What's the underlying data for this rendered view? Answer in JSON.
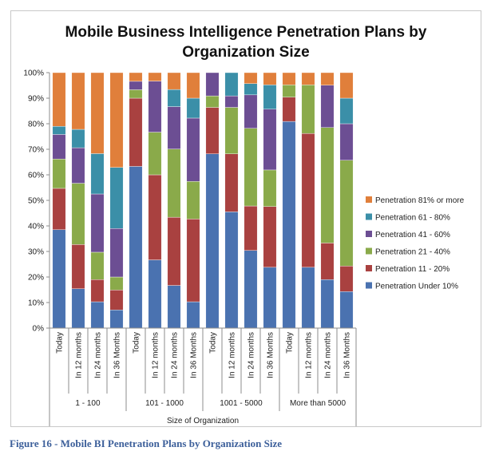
{
  "caption": "Figure 16 - Mobile BI Penetration Plans by Organization Size",
  "chart_data": {
    "type": "bar",
    "stacked": true,
    "percent_stacked": true,
    "title": "Mobile Business Intelligence Penetration Plans by Organization Size",
    "xlabel": "Size of Organization",
    "ylabel": "",
    "ylim": [
      0,
      100
    ],
    "yticks": [
      "0%",
      "10%",
      "20%",
      "30%",
      "40%",
      "50%",
      "60%",
      "70%",
      "80%",
      "90%",
      "100%"
    ],
    "groups": [
      {
        "name": "1 - 100",
        "categories": [
          "Today",
          "In 12 months",
          "In 24 months",
          "In 36 Months"
        ]
      },
      {
        "name": "101 - 1000",
        "categories": [
          "Today",
          "In 12 months",
          "In 24 months",
          "In 36 Months"
        ]
      },
      {
        "name": "1001 - 5000",
        "categories": [
          "Today",
          "In 12 months",
          "In 24 months",
          "In 36 Months"
        ]
      },
      {
        "name": "More than 5000",
        "categories": [
          "Today",
          "In 12 months",
          "In 24 months",
          "In 36 Months"
        ]
      }
    ],
    "series": [
      {
        "name": "Penetration Under 10%",
        "color": "#4a72b0",
        "values": [
          38.5,
          15.4,
          10.3,
          7.1,
          63.3,
          26.7,
          16.7,
          10.3,
          68.2,
          45.5,
          30.4,
          23.8,
          80.9,
          23.8,
          19.0,
          14.3
        ]
      },
      {
        "name": "Penetration 11 - 20%",
        "color": "#a94140",
        "values": [
          16.2,
          17.3,
          8.7,
          7.8,
          26.7,
          33.3,
          26.7,
          32.4,
          18.2,
          22.7,
          17.4,
          23.8,
          9.5,
          52.4,
          14.3,
          10.0
        ]
      },
      {
        "name": "Penetration 21 - 40%",
        "color": "#8aaa4a",
        "values": [
          11.5,
          24.0,
          10.7,
          5.1,
          3.3,
          16.7,
          26.7,
          14.7,
          4.5,
          18.2,
          30.4,
          14.3,
          4.8,
          19.0,
          45.2,
          41.4
        ]
      },
      {
        "name": "Penetration 41 - 60%",
        "color": "#6c4e93",
        "values": [
          9.6,
          13.9,
          22.8,
          19.0,
          3.3,
          20.0,
          16.6,
          24.8,
          9.1,
          4.5,
          13.1,
          23.8,
          0,
          0,
          16.6,
          14.3
        ]
      },
      {
        "name": "Penetration 61 - 80%",
        "color": "#3b8fa8",
        "values": [
          3.2,
          7.2,
          15.8,
          23.9,
          0,
          0,
          6.7,
          7.8,
          0,
          9.1,
          4.4,
          9.5,
          0,
          0,
          0,
          10.0
        ]
      },
      {
        "name": "Penetration 81% or more",
        "color": "#e07f3b",
        "values": [
          21.0,
          22.2,
          31.7,
          37.1,
          3.4,
          3.3,
          6.6,
          10.0,
          0,
          0,
          4.3,
          4.8,
          4.8,
          4.8,
          4.9,
          10.0
        ]
      }
    ],
    "legend_position": "right",
    "grid": false
  }
}
